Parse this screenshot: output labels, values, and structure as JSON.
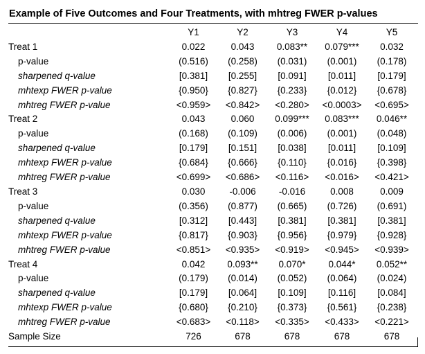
{
  "title": "Example of Five Outcomes and Four Treatments, with mhtreg FWER p-values",
  "columns": [
    "Y1",
    "Y2",
    "Y3",
    "Y4",
    "Y5"
  ],
  "rows": [
    {
      "label": "Treat 1",
      "style": "main",
      "values": [
        "0.022",
        "0.043",
        "0.083**",
        "0.079***",
        "0.032"
      ]
    },
    {
      "label": "p-value",
      "style": "sub",
      "values": [
        "(0.516)",
        "(0.258)",
        "(0.031)",
        "(0.001)",
        "(0.178)"
      ]
    },
    {
      "label": "sharpened q-value",
      "style": "sub-italic",
      "values": [
        "[0.381]",
        "[0.255]",
        "[0.091]",
        "[0.011]",
        "[0.179]"
      ]
    },
    {
      "label": "mhtexp FWER p-value",
      "style": "sub-italic",
      "values": [
        "{0.950}",
        "{0.827}",
        "{0.233}",
        "{0.012}",
        "{0.678}"
      ]
    },
    {
      "label": "mhtreg FWER p-value",
      "style": "sub-italic",
      "values": [
        "<0.959>",
        "<0.842>",
        "<0.280>",
        "<0.0003>",
        "<0.695>"
      ]
    },
    {
      "label": "Treat 2",
      "style": "main",
      "values": [
        "0.043",
        "0.060",
        "0.099***",
        "0.083***",
        "0.046**"
      ]
    },
    {
      "label": "p-value",
      "style": "sub",
      "values": [
        "(0.168)",
        "(0.109)",
        "(0.006)",
        "(0.001)",
        "(0.048)"
      ]
    },
    {
      "label": "sharpened q-value",
      "style": "sub-italic",
      "values": [
        "[0.179]",
        "[0.151]",
        "[0.038]",
        "[0.011]",
        "[0.109]"
      ]
    },
    {
      "label": "mhtexp FWER p-value",
      "style": "sub-italic",
      "values": [
        "{0.684}",
        "{0.666}",
        "{0.110}",
        "{0.016}",
        "{0.398}"
      ]
    },
    {
      "label": "mhtreg FWER p-value",
      "style": "sub-italic",
      "values": [
        "<0.699>",
        "<0.686>",
        "<0.116>",
        "<0.016>",
        "<0.421>"
      ]
    },
    {
      "label": "Treat 3",
      "style": "main",
      "values": [
        "0.030",
        "-0.006",
        "-0.016",
        "0.008",
        "0.009"
      ]
    },
    {
      "label": "p-value",
      "style": "sub",
      "values": [
        "(0.356)",
        "(0.877)",
        "(0.665)",
        "(0.726)",
        "(0.691)"
      ]
    },
    {
      "label": "sharpened q-value",
      "style": "sub-italic",
      "values": [
        "[0.312]",
        "[0.443]",
        "[0.381]",
        "[0.381]",
        "[0.381]"
      ]
    },
    {
      "label": "mhtexp FWER p-value",
      "style": "sub-italic",
      "values": [
        "{0.817}",
        "{0.903}",
        "{0.956}",
        "{0.979}",
        "{0.928}"
      ]
    },
    {
      "label": "mhtreg FWER p-value",
      "style": "sub-italic",
      "values": [
        "<0.851>",
        "<0.935>",
        "<0.919>",
        "<0.945>",
        "<0.939>"
      ]
    },
    {
      "label": "Treat 4",
      "style": "main",
      "values": [
        "0.042",
        "0.093**",
        "0.070*",
        "0.044*",
        "0.052**"
      ]
    },
    {
      "label": "p-value",
      "style": "sub",
      "values": [
        "(0.179)",
        "(0.014)",
        "(0.052)",
        "(0.064)",
        "(0.024)"
      ]
    },
    {
      "label": "sharpened q-value",
      "style": "sub-italic",
      "values": [
        "[0.179]",
        "[0.064]",
        "[0.109]",
        "[0.116]",
        "[0.084]"
      ]
    },
    {
      "label": "mhtexp FWER p-value",
      "style": "sub-italic",
      "values": [
        "{0.680}",
        "{0.210}",
        "{0.373}",
        "{0.561}",
        "{0.238}"
      ]
    },
    {
      "label": "mhtreg FWER p-value",
      "style": "sub-italic",
      "values": [
        "<0.683>",
        "<0.118>",
        "<0.335>",
        "<0.433>",
        "<0.221>"
      ]
    },
    {
      "label": "Sample Size",
      "style": "main",
      "values": [
        "726",
        "678",
        "678",
        "678",
        "678"
      ]
    }
  ]
}
